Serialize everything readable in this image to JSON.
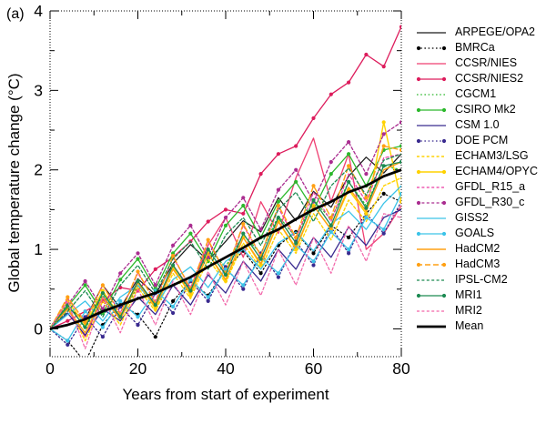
{
  "panel_label": "(a)",
  "chart_data": {
    "type": "line",
    "title": "",
    "xlabel": "Years from start of experiment",
    "ylabel": "Global temperature change (°C)",
    "xlim": [
      0,
      80
    ],
    "ylim": [
      -0.35,
      4
    ],
    "xticks": [
      0,
      20,
      40,
      60,
      80
    ],
    "xminorticks": [
      10,
      30,
      50,
      70
    ],
    "yticks": [
      0,
      1,
      2,
      3,
      4
    ],
    "yminorticks": [
      0.5,
      1.5,
      2.5,
      3.5
    ],
    "grid": false,
    "legend_position": "right",
    "x": [
      0,
      4,
      8,
      12,
      16,
      20,
      24,
      28,
      32,
      36,
      40,
      44,
      48,
      52,
      56,
      60,
      64,
      68,
      72,
      76,
      80
    ],
    "series": [
      {
        "name": "ARPEGE/OPA2",
        "color": "#1a1a1a",
        "dash": "solid",
        "marker": false,
        "width": 1.2,
        "values": [
          0.0,
          0.26,
          0.12,
          0.55,
          0.26,
          0.63,
          0.43,
          0.82,
          1.06,
          0.86,
          1.1,
          1.36,
          1.22,
          1.65,
          1.36,
          1.73,
          1.53,
          1.92,
          2.16,
          1.96,
          2.2
        ]
      },
      {
        "name": "BMRCa",
        "color": "#000000",
        "dash": "dot",
        "marker": true,
        "width": 1.2,
        "values": [
          0.0,
          -0.15,
          -0.42,
          0.05,
          0.3,
          0.18,
          -0.1,
          0.35,
          0.6,
          0.42,
          0.75,
          0.98,
          0.7,
          1.05,
          1.22,
          0.95,
          1.3,
          1.15,
          1.45,
          1.7,
          1.6
        ]
      },
      {
        "name": "CCSR/NIES",
        "color": "#ef3f72",
        "dash": "solid",
        "marker": false,
        "width": 1.3,
        "values": [
          0.0,
          0.25,
          -0.1,
          0.4,
          0.15,
          0.6,
          0.3,
          0.8,
          0.5,
          1.05,
          1.4,
          0.9,
          1.6,
          1.2,
          1.9,
          2.4,
          1.6,
          2.2,
          1.0,
          1.2,
          1.55
        ]
      },
      {
        "name": "CCSR/NIES2",
        "color": "#dd1c5c",
        "dash": "solid",
        "marker": true,
        "width": 1.3,
        "values": [
          0.0,
          0.1,
          0.22,
          0.35,
          0.52,
          0.48,
          0.75,
          0.9,
          1.1,
          1.35,
          1.5,
          1.45,
          1.95,
          2.2,
          2.3,
          2.65,
          2.95,
          3.1,
          3.45,
          3.3,
          3.8
        ]
      },
      {
        "name": "CGCM1",
        "color": "#2cb82c",
        "dash": "dot",
        "marker": false,
        "width": 1.3,
        "values": [
          0.02,
          0.32,
          0.0,
          0.42,
          0.12,
          0.55,
          0.28,
          0.75,
          0.48,
          1.0,
          0.78,
          1.18,
          0.95,
          1.42,
          1.15,
          1.62,
          1.38,
          1.85,
          1.55,
          2.05,
          2.0
        ]
      },
      {
        "name": "CSIRO Mk2",
        "color": "#2cb82c",
        "dash": "solid",
        "marker": true,
        "width": 1.3,
        "values": [
          0.0,
          0.28,
          0.55,
          0.2,
          0.62,
          0.88,
          0.5,
          0.95,
          1.2,
          0.85,
          1.3,
          1.55,
          1.15,
          1.6,
          1.85,
          1.5,
          1.95,
          2.2,
          1.8,
          2.25,
          2.3
        ]
      },
      {
        "name": "CSM 1.0",
        "color": "#392a8f",
        "dash": "solid",
        "marker": false,
        "width": 1.3,
        "values": [
          0.0,
          0.2,
          -0.08,
          0.25,
          0.1,
          0.4,
          0.18,
          0.55,
          0.3,
          0.68,
          0.45,
          0.85,
          0.6,
          1.0,
          0.75,
          1.15,
          0.9,
          1.28,
          1.05,
          1.4,
          1.5
        ]
      },
      {
        "name": "DOE PCM",
        "color": "#392a8f",
        "dash": "dot",
        "marker": true,
        "width": 1.3,
        "values": [
          0.0,
          -0.2,
          0.15,
          -0.1,
          0.28,
          0.05,
          0.45,
          0.2,
          0.6,
          0.35,
          0.78,
          0.5,
          0.95,
          0.65,
          1.1,
          0.8,
          1.28,
          0.95,
          1.45,
          1.2,
          1.6
        ]
      },
      {
        "name": "ECHAM3/LSG",
        "color": "#ffd200",
        "dash": "finedash",
        "marker": false,
        "width": 1.4,
        "values": [
          0.0,
          0.3,
          -0.15,
          0.35,
          0.05,
          0.52,
          0.22,
          0.7,
          0.38,
          0.88,
          0.58,
          1.08,
          0.75,
          1.25,
          0.95,
          1.45,
          1.12,
          1.62,
          1.35,
          1.8,
          1.9
        ]
      },
      {
        "name": "ECHAM4/OPYC",
        "color": "#ffd200",
        "dash": "solid",
        "marker": true,
        "width": 1.4,
        "values": [
          0.0,
          0.35,
          0.05,
          0.48,
          0.15,
          0.6,
          0.25,
          0.78,
          0.42,
          0.95,
          0.6,
          1.15,
          0.8,
          1.35,
          1.0,
          1.55,
          1.25,
          1.75,
          1.45,
          2.6,
          1.6
        ]
      },
      {
        "name": "GFDL_R15_a",
        "color": "#ea3aa2",
        "dash": "finedash",
        "marker": false,
        "width": 1.2,
        "values": [
          0.0,
          0.38,
          0.1,
          0.55,
          0.2,
          0.7,
          0.35,
          0.9,
          0.52,
          1.1,
          0.7,
          1.3,
          0.92,
          1.52,
          1.12,
          1.72,
          1.35,
          1.95,
          1.6,
          2.15,
          2.2
        ]
      },
      {
        "name": "GFDL_R30_c",
        "color": "#aa2d90",
        "dash": "finedash",
        "marker": true,
        "width": 1.3,
        "values": [
          0.0,
          0.3,
          0.6,
          0.25,
          0.7,
          0.95,
          0.55,
          1.05,
          1.3,
          0.9,
          1.4,
          1.65,
          1.25,
          1.75,
          2.0,
          1.6,
          2.1,
          2.35,
          1.95,
          2.45,
          2.6
        ]
      },
      {
        "name": "GISS2",
        "color": "#3cc3e8",
        "dash": "solid",
        "marker": false,
        "width": 1.3,
        "values": [
          0.0,
          0.18,
          0.35,
          0.1,
          0.4,
          0.55,
          0.3,
          0.62,
          0.78,
          0.52,
          0.85,
          1.0,
          0.75,
          1.08,
          1.22,
          0.98,
          1.32,
          1.48,
          1.25,
          1.58,
          1.8
        ]
      },
      {
        "name": "GOALS",
        "color": "#3cc3e8",
        "dash": "solid",
        "marker": true,
        "width": 1.3,
        "values": [
          0.0,
          -0.15,
          0.22,
          0.02,
          0.35,
          0.15,
          0.48,
          0.28,
          0.62,
          0.4,
          0.75,
          0.55,
          0.9,
          0.7,
          1.05,
          0.85,
          1.22,
          1.0,
          1.4,
          1.25,
          1.7
        ]
      },
      {
        "name": "HadCM2",
        "color": "#ffa013",
        "dash": "solid",
        "marker": false,
        "width": 1.4,
        "values": [
          0.0,
          0.25,
          -0.05,
          0.4,
          0.12,
          0.58,
          0.28,
          0.75,
          0.45,
          0.95,
          0.62,
          1.15,
          0.82,
          1.35,
          1.02,
          1.55,
          1.25,
          1.78,
          1.48,
          2.0,
          2.1
        ]
      },
      {
        "name": "HadCM3",
        "color": "#ffa013",
        "dash": "dash",
        "marker": true,
        "width": 1.4,
        "values": [
          0.0,
          0.4,
          0.08,
          0.55,
          0.18,
          0.72,
          0.32,
          0.92,
          0.5,
          1.12,
          0.7,
          1.32,
          0.92,
          1.55,
          1.15,
          1.8,
          1.4,
          2.05,
          1.65,
          2.3,
          2.25
        ]
      },
      {
        "name": "IPSL-CM2",
        "color": "#1c8a52",
        "dash": "finedash",
        "marker": false,
        "width": 1.3,
        "values": [
          0.0,
          0.22,
          0.48,
          0.15,
          0.55,
          0.8,
          0.45,
          0.88,
          1.1,
          0.75,
          1.18,
          1.4,
          1.05,
          1.5,
          1.72,
          1.35,
          1.8,
          2.02,
          1.68,
          2.12,
          2.2
        ]
      },
      {
        "name": "MRI1",
        "color": "#1c8a52",
        "dash": "solid",
        "marker": true,
        "width": 1.3,
        "values": [
          0.0,
          0.3,
          0.02,
          0.45,
          0.15,
          0.6,
          0.3,
          0.8,
          0.48,
          1.0,
          0.68,
          1.2,
          0.88,
          1.4,
          1.08,
          1.62,
          1.3,
          1.85,
          1.52,
          2.05,
          2.1
        ]
      },
      {
        "name": "MRI2",
        "color": "#f263a8",
        "dash": "finedash",
        "marker": false,
        "width": 1.2,
        "values": [
          0.0,
          0.35,
          -0.25,
          0.4,
          -0.05,
          0.5,
          0.05,
          0.6,
          0.18,
          0.72,
          0.3,
          0.85,
          0.42,
          1.0,
          0.55,
          1.15,
          0.7,
          1.3,
          0.85,
          1.45,
          1.4
        ]
      },
      {
        "name": "Mean",
        "color": "#000000",
        "dash": "solid",
        "marker": false,
        "width": 2.8,
        "values": [
          0.0,
          0.05,
          0.12,
          0.22,
          0.3,
          0.38,
          0.45,
          0.55,
          0.65,
          0.78,
          0.9,
          1.02,
          1.15,
          1.25,
          1.38,
          1.5,
          1.6,
          1.72,
          1.8,
          1.92,
          2.0
        ]
      }
    ]
  }
}
